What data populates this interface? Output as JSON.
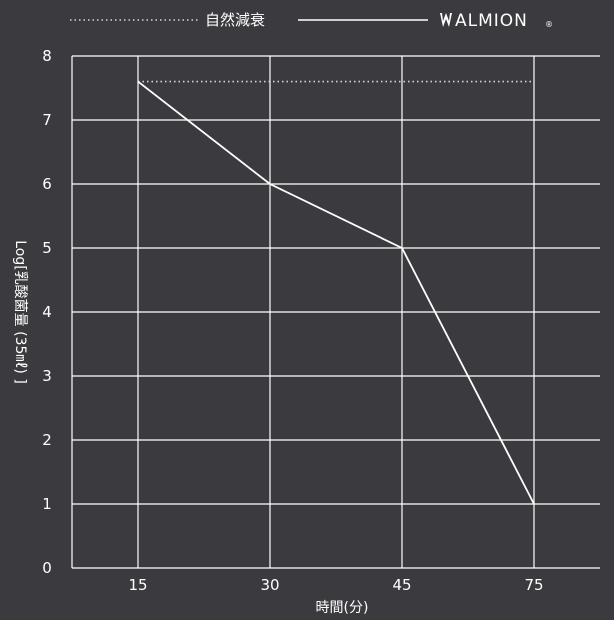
{
  "chart_data": {
    "type": "line",
    "xlabel": "時間(分)",
    "ylabel": "Log[乳酸菌量 (35㎖) ]",
    "categories": [
      "15",
      "30",
      "45",
      "75"
    ],
    "ylim": [
      0,
      8
    ],
    "y_ticks": [
      "0",
      "1",
      "2",
      "3",
      "4",
      "5",
      "6",
      "7",
      "8"
    ],
    "grid": true,
    "legend_position": "top",
    "series": [
      {
        "name": "自然減衰",
        "style": "dotted",
        "color": "#d8d8d8",
        "values": [
          7.6,
          7.6,
          7.6,
          7.6
        ]
      },
      {
        "name": "ALMION",
        "style": "solid",
        "color": "#ffffff",
        "values": [
          7.6,
          6.0,
          5.0,
          1.0
        ]
      }
    ],
    "legend": {
      "brand_mark": "almion-logo-icon",
      "registered_mark": "®"
    }
  },
  "colors": {
    "background": "#3b3a3f",
    "grid": "#ffffff",
    "line": "#ffffff",
    "dotted": "#d8d8d8"
  }
}
